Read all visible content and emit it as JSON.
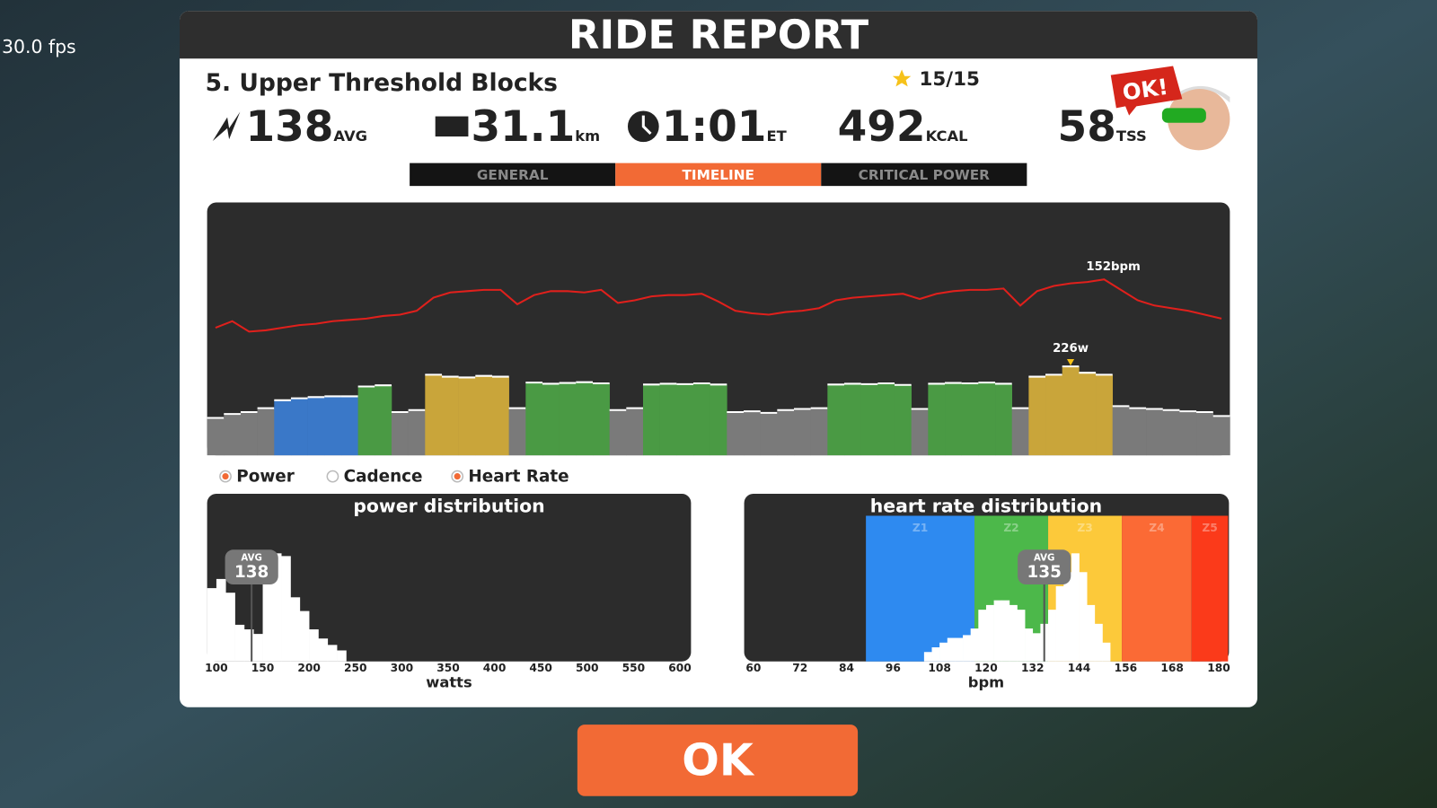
{
  "fps": "30.0 fps",
  "header": {
    "title": "RIDE REPORT"
  },
  "workout": {
    "name": "5. Upper Threshold Blocks",
    "stars": "15/15"
  },
  "stats": [
    {
      "value": "138",
      "unit": "AVG"
    },
    {
      "value": "31.1",
      "unit": "km"
    },
    {
      "value": "1:01",
      "unit": "ET"
    },
    {
      "value": "492",
      "unit": "KCAL"
    },
    {
      "value": "58",
      "unit": "TSS"
    }
  ],
  "badge": "OK!",
  "tabs": {
    "items": [
      "GENERAL",
      "TIMELINE",
      "CRITICAL POWER"
    ],
    "active": 1
  },
  "timeline": {
    "x": [
      0,
      1,
      2,
      3,
      4,
      5,
      6,
      7,
      8,
      9,
      10,
      11,
      12,
      13,
      14,
      15,
      16,
      17,
      18,
      19,
      20,
      21,
      22,
      23,
      24,
      25,
      26,
      27,
      28,
      29,
      30,
      31,
      32,
      33,
      34,
      35,
      36,
      37,
      38,
      39,
      40,
      41,
      42,
      43,
      44,
      45,
      46,
      47,
      48,
      49,
      50,
      51,
      52,
      53,
      54,
      55,
      56,
      57,
      58,
      59,
      60
    ],
    "xlim": [
      0,
      61
    ],
    "power": {
      "values": [
        95,
        105,
        110,
        120,
        140,
        145,
        148,
        150,
        150,
        175,
        178,
        110,
        115,
        205,
        200,
        198,
        202,
        200,
        120,
        185,
        182,
        184,
        186,
        183,
        115,
        120,
        180,
        182,
        181,
        183,
        180,
        110,
        112,
        108,
        115,
        118,
        120,
        180,
        182,
        181,
        183,
        179,
        118,
        182,
        184,
        183,
        185,
        182,
        120,
        200,
        205,
        226,
        210,
        205,
        125,
        120,
        118,
        115,
        112,
        110,
        100
      ],
      "colors": [
        "#7a7a7a",
        "#7a7a7a",
        "#7a7a7a",
        "#7a7a7a",
        "#3a78c8",
        "#3a78c8",
        "#3a78c8",
        "#3a78c8",
        "#3a78c8",
        "#4a9a44",
        "#4a9a44",
        "#7a7a7a",
        "#7a7a7a",
        "#c9a53a",
        "#c9a53a",
        "#c9a53a",
        "#c9a53a",
        "#c9a53a",
        "#7a7a7a",
        "#4a9a44",
        "#4a9a44",
        "#4a9a44",
        "#4a9a44",
        "#4a9a44",
        "#7a7a7a",
        "#7a7a7a",
        "#4a9a44",
        "#4a9a44",
        "#4a9a44",
        "#4a9a44",
        "#4a9a44",
        "#7a7a7a",
        "#7a7a7a",
        "#7a7a7a",
        "#7a7a7a",
        "#7a7a7a",
        "#7a7a7a",
        "#4a9a44",
        "#4a9a44",
        "#4a9a44",
        "#4a9a44",
        "#4a9a44",
        "#7a7a7a",
        "#4a9a44",
        "#4a9a44",
        "#4a9a44",
        "#4a9a44",
        "#4a9a44",
        "#7a7a7a",
        "#c9a53a",
        "#c9a53a",
        "#c9a53a",
        "#c9a53a",
        "#c9a53a",
        "#7a7a7a",
        "#7a7a7a",
        "#7a7a7a",
        "#7a7a7a",
        "#7a7a7a",
        "#7a7a7a",
        "#7a7a7a"
      ],
      "peak_label": "226w"
    },
    "heart_rate": {
      "values": [
        115,
        120,
        112,
        113,
        115,
        117,
        118,
        120,
        121,
        122,
        124,
        125,
        128,
        138,
        142,
        143,
        144,
        144,
        133,
        140,
        143,
        143,
        142,
        144,
        134,
        136,
        139,
        140,
        140,
        141,
        135,
        128,
        126,
        125,
        127,
        128,
        130,
        136,
        138,
        139,
        140,
        141,
        137,
        141,
        143,
        144,
        144,
        145,
        132,
        143,
        147,
        149,
        150,
        152,
        144,
        136,
        132,
        130,
        128,
        125,
        122
      ],
      "color": "#e0201c",
      "peak_label": "152bpm"
    }
  },
  "legend": [
    {
      "name": "Power",
      "checked": true
    },
    {
      "name": "Cadence",
      "checked": false
    },
    {
      "name": "Heart Rate",
      "checked": true
    }
  ],
  "power_distribution": {
    "title": "power distribution",
    "xlabel": "watts",
    "xlim": [
      90,
      612
    ],
    "xticks": [
      100,
      150,
      200,
      250,
      300,
      350,
      400,
      450,
      500,
      550,
      600
    ],
    "bins": [
      90,
      100,
      110,
      120,
      130,
      140,
      150,
      160,
      170,
      180,
      190,
      200,
      210,
      220,
      230,
      240
    ],
    "counts": [
      80,
      90,
      75,
      40,
      35,
      30,
      100,
      118,
      115,
      70,
      55,
      35,
      25,
      18,
      12
    ],
    "avg": {
      "label": "AVG",
      "value": 138
    }
  },
  "heart_rate_distribution": {
    "title": "heart rate distribution",
    "xlabel": "bpm",
    "xlim": [
      57.6,
      182.4
    ],
    "xticks": [
      60,
      72,
      84,
      96,
      108,
      120,
      132,
      144,
      156,
      168,
      180
    ],
    "zones": {
      "names": [
        "Z1",
        "Z2",
        "Z3",
        "Z4",
        "Z5"
      ],
      "edges": [
        89,
        117,
        136,
        155,
        173,
        182.4
      ],
      "colors": [
        "#2e8af0",
        "#4cb84a",
        "#fcc93a",
        "#fb6a35",
        "#fb3a1a"
      ]
    },
    "bins": [
      104,
      106,
      108,
      110,
      112,
      114,
      116,
      118,
      120,
      122,
      124,
      126,
      128,
      130,
      132,
      134,
      136,
      138,
      140,
      142,
      144,
      146,
      148,
      150,
      152
    ],
    "counts": [
      10,
      15,
      20,
      25,
      25,
      28,
      35,
      55,
      60,
      65,
      65,
      60,
      55,
      35,
      30,
      40,
      55,
      80,
      95,
      115,
      95,
      60,
      40,
      20
    ],
    "avg": {
      "label": "AVG",
      "value": 135
    }
  },
  "button": "OK"
}
